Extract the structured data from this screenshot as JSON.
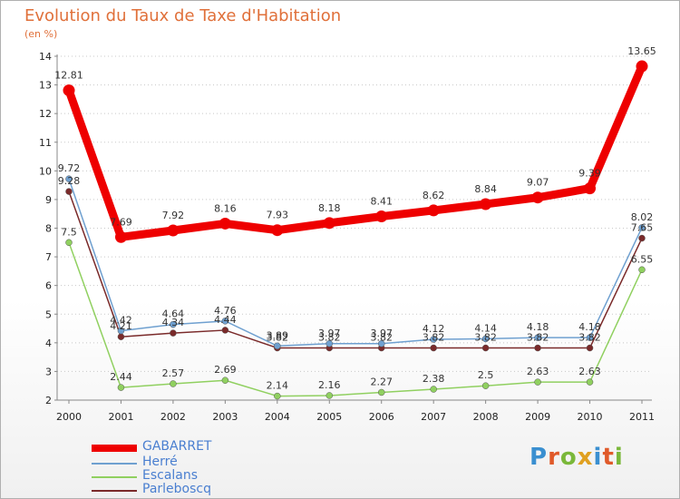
{
  "title": "Evolution du Taux de Taxe d'Habitation",
  "subtitle": "(en %)",
  "logo": {
    "text": "Proxiti",
    "colors": [
      "#3a8fd0",
      "#e05a2a",
      "#7ab83a",
      "#e0a020",
      "#3a8fd0",
      "#e05a2a",
      "#7ab83a"
    ]
  },
  "chart_data": {
    "type": "line",
    "x": [
      "2000",
      "2001",
      "2002",
      "2003",
      "2004",
      "2005",
      "2006",
      "2007",
      "2008",
      "2009",
      "2010",
      "2011"
    ],
    "ylim": [
      2,
      14
    ],
    "yticks": [
      "2",
      "3",
      "4",
      "5",
      "6",
      "7",
      "8",
      "9",
      "10",
      "11",
      "12",
      "13",
      "14"
    ],
    "series": [
      {
        "name": "GABARRET",
        "color": "#ee0000",
        "values": [
          12.81,
          7.69,
          7.92,
          8.16,
          7.93,
          8.18,
          8.41,
          8.62,
          8.84,
          9.07,
          9.39,
          13.65
        ],
        "labels": [
          "12.81",
          "7.69",
          "7.92",
          "8.16",
          "7.93",
          "8.18",
          "8.41",
          "8.62",
          "8.84",
          "9.07",
          "9.39",
          "13.65"
        ]
      },
      {
        "name": "Herré",
        "color": "#6fa0d0",
        "values": [
          9.72,
          4.42,
          4.64,
          4.76,
          3.89,
          3.97,
          3.97,
          4.12,
          4.14,
          4.18,
          4.18,
          8.02
        ],
        "labels": [
          "9.72",
          "4.42",
          "4.64",
          "4.76",
          "3.89",
          "3.97",
          "3.97",
          "4.12",
          "4.14",
          "4.18",
          "4.18",
          "8.02"
        ]
      },
      {
        "name": "Escalans",
        "color": "#90d060",
        "values": [
          7.5,
          2.44,
          2.57,
          2.69,
          2.14,
          2.16,
          2.27,
          2.38,
          2.5,
          2.63,
          2.63,
          6.55
        ],
        "labels": [
          "7.5",
          "2.44",
          "2.57",
          "2.69",
          "2.14",
          "2.16",
          "2.27",
          "2.38",
          "2.5",
          "2.63",
          "2.63",
          "6.55"
        ]
      },
      {
        "name": "Parleboscq",
        "color": "#7a2a2a",
        "values": [
          9.28,
          4.21,
          4.34,
          4.44,
          3.82,
          3.82,
          3.82,
          3.82,
          3.82,
          3.82,
          3.82,
          7.65
        ],
        "labels": [
          "9.28",
          "4.21",
          "4.34",
          "4.44",
          "3.82",
          "3.82",
          "3.82",
          "3.82",
          "3.82",
          "3.82",
          "3.82",
          "7.65"
        ]
      }
    ]
  }
}
